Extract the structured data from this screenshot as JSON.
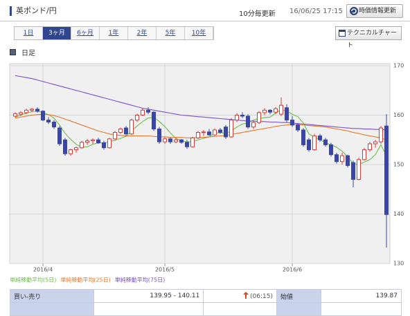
{
  "header": {
    "title": "英ポンド/円",
    "update_note": "10分毎更新",
    "timestamp": "16/06/25 17:15",
    "refresh_button": "時価情報更新"
  },
  "tabs": [
    {
      "label": "1日",
      "active": false
    },
    {
      "label": "3ヶ月",
      "active": true
    },
    {
      "label": "6ヶ月",
      "active": false
    },
    {
      "label": "1年",
      "active": false
    },
    {
      "label": "2年",
      "active": false
    },
    {
      "label": "5年",
      "active": false
    },
    {
      "label": "10年",
      "active": false
    }
  ],
  "technical_button": "テクニカルチャート",
  "period_label": "日足",
  "chart_data": {
    "type": "candlestick",
    "categories": [
      null,
      null,
      null,
      null,
      null,
      "2016/4",
      null,
      null,
      null,
      null,
      null,
      null,
      null,
      null,
      null,
      null,
      null,
      null,
      null,
      null,
      null,
      null,
      null,
      null,
      null,
      null,
      null,
      "2016/5",
      null,
      null,
      null,
      null,
      null,
      null,
      null,
      null,
      null,
      null,
      null,
      null,
      null,
      null,
      null,
      null,
      null,
      null,
      null,
      null,
      null,
      null,
      "2016/6",
      null,
      null,
      null,
      null,
      null,
      null,
      null,
      null,
      null,
      null,
      null,
      null,
      null,
      null,
      null,
      null,
      null
    ],
    "open": [
      159.8,
      160.2,
      160.5,
      161.0,
      161.2,
      160.8,
      159.0,
      158.6,
      157.4,
      155.0,
      152.2,
      153.0,
      153.4,
      154.5,
      154.8,
      155.0,
      154.4,
      153.4,
      155.2,
      156.5,
      157.4,
      156.2,
      159.0,
      160.0,
      161.0,
      160.6,
      157.2,
      154.6,
      155.2,
      154.6,
      155.0,
      154.5,
      153.6,
      155.4,
      156.5,
      156.6,
      156.0,
      157.0,
      157.6,
      155.6,
      159.0,
      160.0,
      159.8,
      157.6,
      158.5,
      160.5,
      161.0,
      160.6,
      160.2,
      161.5,
      159.0,
      158.0,
      157.0,
      155.0,
      153.0,
      155.8,
      155.0,
      154.0,
      152.0,
      150.6,
      151.8,
      150.4,
      147.0,
      151.0,
      153.0,
      154.2,
      154.6,
      157.8
    ],
    "high": [
      160.6,
      160.8,
      161.3,
      161.5,
      161.6,
      161.0,
      159.6,
      159.0,
      157.8,
      155.4,
      153.2,
      153.6,
      154.8,
      155.2,
      155.3,
      155.4,
      154.8,
      155.4,
      156.8,
      157.5,
      157.8,
      159.3,
      160.3,
      161.4,
      161.6,
      160.8,
      157.6,
      155.6,
      155.5,
      155.4,
      155.2,
      155.0,
      155.6,
      156.8,
      157.0,
      157.2,
      157.3,
      157.4,
      158.0,
      159.4,
      160.4,
      160.6,
      160.2,
      158.8,
      160.8,
      161.4,
      161.2,
      161.6,
      163.6,
      162.2,
      159.8,
      158.4,
      157.4,
      155.4,
      156.2,
      156.2,
      155.4,
      154.4,
      152.4,
      152.4,
      152.0,
      150.8,
      151.4,
      153.4,
      154.6,
      155.0,
      157.8,
      160.2
    ],
    "low": [
      159.5,
      159.8,
      160.2,
      160.6,
      160.5,
      158.8,
      158.2,
      157.2,
      153.8,
      151.8,
      151.8,
      152.4,
      153.2,
      154.0,
      154.2,
      154.2,
      153.0,
      153.2,
      155.0,
      156.2,
      155.8,
      156.0,
      158.6,
      159.8,
      160.2,
      156.8,
      154.2,
      154.2,
      154.2,
      154.3,
      154.2,
      153.2,
      153.4,
      155.2,
      155.8,
      155.8,
      155.8,
      156.2,
      155.2,
      155.4,
      158.6,
      159.4,
      157.2,
      157.2,
      158.2,
      160.0,
      160.2,
      160.2,
      159.8,
      158.6,
      157.6,
      156.6,
      153.6,
      152.6,
      152.8,
      154.6,
      153.6,
      151.6,
      150.2,
      150.0,
      149.4,
      145.4,
      146.8,
      150.8,
      152.6,
      153.4,
      154.2,
      133.2
    ],
    "close": [
      160.3,
      160.5,
      161.0,
      161.2,
      160.8,
      159.0,
      158.6,
      157.6,
      154.2,
      152.2,
      153.0,
      153.4,
      154.5,
      154.8,
      155.0,
      154.4,
      153.4,
      155.2,
      156.5,
      157.2,
      156.2,
      159.0,
      160.0,
      161.0,
      160.6,
      157.2,
      154.6,
      155.2,
      154.6,
      155.0,
      154.5,
      153.6,
      155.4,
      156.5,
      156.6,
      156.0,
      157.0,
      156.5,
      155.6,
      159.0,
      160.0,
      159.8,
      157.6,
      158.5,
      160.5,
      161.0,
      160.6,
      161.3,
      162.0,
      159.0,
      158.0,
      157.0,
      154.0,
      153.0,
      155.8,
      155.0,
      154.0,
      152.0,
      150.6,
      151.8,
      149.8,
      147.0,
      151.0,
      153.0,
      154.2,
      154.6,
      157.4,
      139.9
    ],
    "up_color": "#d93a3a",
    "down_color": "#3a45a8",
    "series": [
      {
        "name": "単純移動平均(5日)",
        "color": "#6cc04a",
        "values": [
          159.6,
          160.0,
          160.4,
          160.7,
          160.8,
          160.5,
          160.1,
          159.4,
          158.0,
          156.3,
          155.1,
          154.1,
          153.5,
          153.6,
          154.1,
          154.4,
          154.4,
          154.6,
          154.9,
          155.3,
          155.7,
          156.8,
          157.8,
          158.7,
          159.4,
          159.6,
          158.7,
          157.7,
          156.4,
          155.3,
          154.8,
          154.6,
          154.6,
          155.0,
          155.3,
          155.6,
          156.3,
          156.5,
          156.3,
          156.8,
          157.6,
          158.2,
          158.4,
          159.0,
          159.3,
          159.5,
          159.6,
          160.4,
          161.1,
          160.8,
          160.2,
          159.7,
          158.4,
          156.2,
          155.6,
          155.0,
          154.4,
          154.0,
          153.5,
          152.7,
          151.6,
          150.2,
          150.0,
          150.5,
          151.0,
          152.0,
          154.0,
          151.8
        ]
      },
      {
        "name": "単純移動平均(25日)",
        "color": "#e8782a",
        "values": [
          159.4,
          159.6,
          159.8,
          160.0,
          160.1,
          160.2,
          160.1,
          159.9,
          159.6,
          159.2,
          158.8,
          158.4,
          158.0,
          157.6,
          157.2,
          156.8,
          156.5,
          156.2,
          156.0,
          155.9,
          155.8,
          155.8,
          155.8,
          155.8,
          155.8,
          155.7,
          155.6,
          155.6,
          155.5,
          155.5,
          155.5,
          155.4,
          155.4,
          155.5,
          155.5,
          155.6,
          155.7,
          155.8,
          155.9,
          156.1,
          156.3,
          156.5,
          156.7,
          156.9,
          157.1,
          157.3,
          157.5,
          157.7,
          157.9,
          158.0,
          158.1,
          158.1,
          158.0,
          157.9,
          157.8,
          157.7,
          157.6,
          157.4,
          157.2,
          157.0,
          156.8,
          156.5,
          156.3,
          156.0,
          155.8,
          155.6,
          155.4,
          155.0
        ]
      },
      {
        "name": "単純移動平均(75日)",
        "color": "#7a4fd0",
        "values": [
          168.0,
          167.8,
          167.6,
          167.4,
          167.1,
          166.8,
          166.5,
          166.2,
          165.9,
          165.6,
          165.3,
          165.0,
          164.7,
          164.4,
          164.1,
          163.8,
          163.5,
          163.2,
          162.9,
          162.6,
          162.3,
          162.0,
          161.7,
          161.4,
          161.2,
          161.0,
          160.8,
          160.6,
          160.4,
          160.2,
          160.0,
          159.9,
          159.8,
          159.7,
          159.6,
          159.5,
          159.4,
          159.3,
          159.2,
          159.1,
          159.0,
          158.9,
          158.8,
          158.8,
          158.7,
          158.7,
          158.6,
          158.6,
          158.5,
          158.5,
          158.4,
          158.3,
          158.2,
          158.1,
          158.0,
          157.9,
          157.8,
          157.7,
          157.6,
          157.5,
          157.4,
          157.3,
          157.3,
          157.2,
          157.2,
          157.1,
          157.1,
          157.0
        ]
      }
    ],
    "ylim": [
      130,
      170
    ],
    "yticks": [
      130,
      140,
      150,
      160,
      170
    ],
    "grid": true
  },
  "quote_table": {
    "rows": [
      [
        "買い-売り",
        "139.95 - 140.11",
        "(06:15)",
        "始値",
        "139.87"
      ]
    ]
  }
}
